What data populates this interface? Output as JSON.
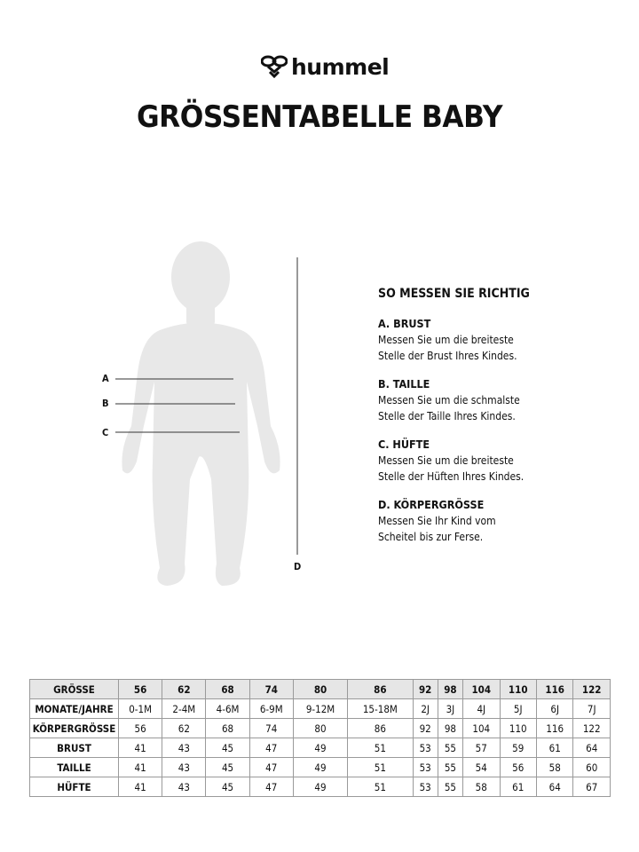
{
  "brand": {
    "name": "hummel",
    "logo_icon": "hummel-bee-icon"
  },
  "title": "GRÖSSENTABELLE BABY",
  "figure": {
    "labels": {
      "a": "A",
      "b": "B",
      "c": "C",
      "d": "D"
    },
    "silhouette_color": "#e8e8e8"
  },
  "guide": {
    "heading": "SO MESSEN SIE RICHTIG",
    "sections": [
      {
        "title": "A. BRUST",
        "lines": [
          "Messen Sie um die breiteste",
          "Stelle der Brust Ihres Kindes."
        ]
      },
      {
        "title": "B. TAILLE",
        "lines": [
          "Messen Sie um die schmalste",
          "Stelle der Taille Ihres Kindes."
        ]
      },
      {
        "title": "C. HÜFTE",
        "lines": [
          "Messen Sie um die breiteste",
          "Stelle der Hüften Ihres Kindes."
        ]
      },
      {
        "title": "D. KÖRPERGRÖSSE",
        "lines": [
          "Messen Sie Ihr Kind vom",
          "Scheitel bis zur Ferse."
        ]
      }
    ]
  },
  "table": {
    "header": {
      "label": "GRÖSSE",
      "values": [
        "56",
        "62",
        "68",
        "74",
        "80",
        "86",
        "92",
        "98",
        "104",
        "110",
        "116",
        "122"
      ]
    },
    "rows": [
      {
        "label": "MONATE/JAHRE",
        "values": [
          "0-1M",
          "2-4M",
          "4-6M",
          "6-9M",
          "9-12M",
          "15-18M",
          "2J",
          "3J",
          "4J",
          "5J",
          "6J",
          "7J"
        ]
      },
      {
        "label": "KÖRPERGRÖSSE",
        "values": [
          "56",
          "62",
          "68",
          "74",
          "80",
          "86",
          "92",
          "98",
          "104",
          "110",
          "116",
          "122"
        ]
      },
      {
        "label": "BRUST",
        "values": [
          "41",
          "43",
          "45",
          "47",
          "49",
          "51",
          "53",
          "55",
          "57",
          "59",
          "61",
          "64"
        ]
      },
      {
        "label": "TAILLE",
        "values": [
          "41",
          "43",
          "45",
          "47",
          "49",
          "51",
          "53",
          "55",
          "54",
          "56",
          "58",
          "60"
        ]
      },
      {
        "label": "HÜFTE",
        "values": [
          "41",
          "43",
          "45",
          "47",
          "49",
          "51",
          "53",
          "55",
          "58",
          "61",
          "64",
          "67"
        ]
      }
    ]
  }
}
